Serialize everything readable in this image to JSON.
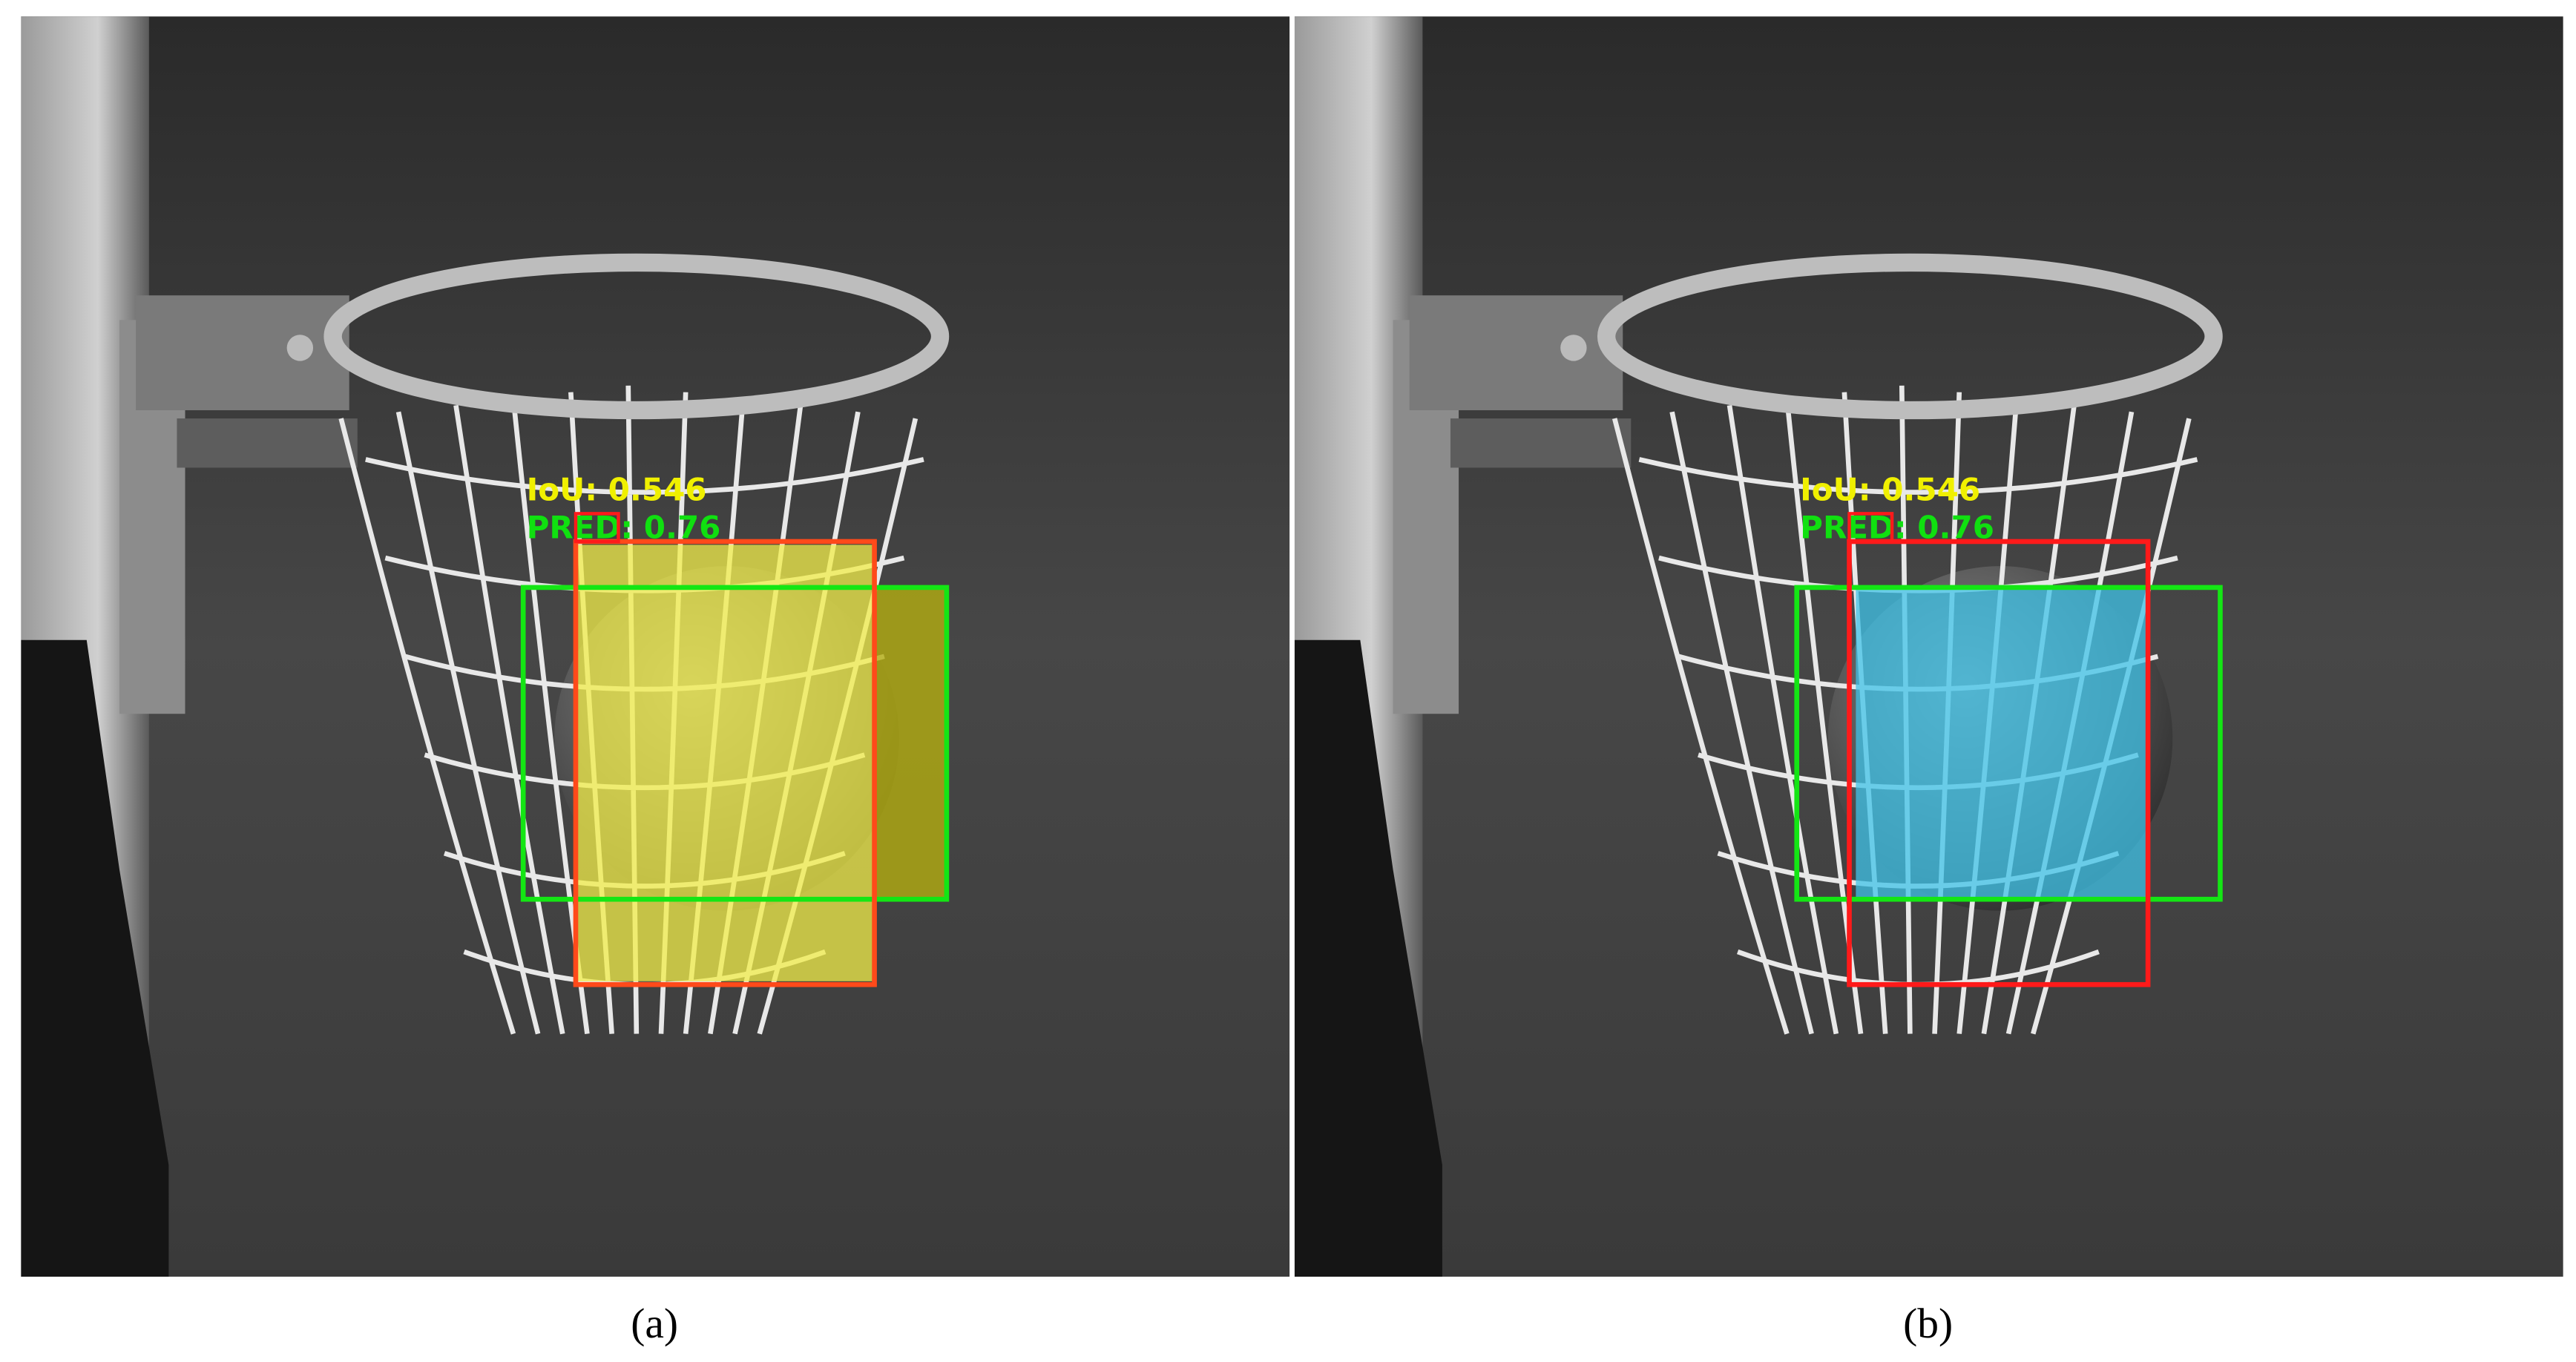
{
  "panels": [
    {
      "iou_label": "IoU: 0.546",
      "pred_label": "PRED: 0.76",
      "caption": "(a)"
    },
    {
      "iou_label": "IoU: 0.546",
      "pred_label": "PRED: 0.76",
      "caption": "(b)"
    }
  ]
}
